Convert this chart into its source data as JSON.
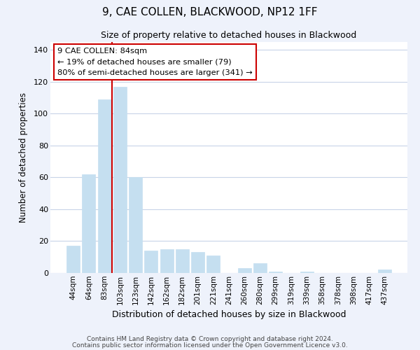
{
  "title": "9, CAE COLLEN, BLACKWOOD, NP12 1FF",
  "subtitle": "Size of property relative to detached houses in Blackwood",
  "xlabel": "Distribution of detached houses by size in Blackwood",
  "ylabel": "Number of detached properties",
  "bar_labels": [
    "44sqm",
    "64sqm",
    "83sqm",
    "103sqm",
    "123sqm",
    "142sqm",
    "162sqm",
    "182sqm",
    "201sqm",
    "221sqm",
    "241sqm",
    "260sqm",
    "280sqm",
    "299sqm",
    "319sqm",
    "339sqm",
    "358sqm",
    "378sqm",
    "398sqm",
    "417sqm",
    "437sqm"
  ],
  "bar_values": [
    17,
    62,
    109,
    117,
    60,
    14,
    15,
    15,
    13,
    11,
    0,
    3,
    6,
    1,
    0,
    1,
    0,
    0,
    0,
    0,
    2
  ],
  "bar_color": "#c5dff0",
  "vline_index": 2,
  "vline_color": "#cc0000",
  "ylim": [
    0,
    145
  ],
  "yticks": [
    0,
    20,
    40,
    60,
    80,
    100,
    120,
    140
  ],
  "annotation_title": "9 CAE COLLEN: 84sqm",
  "annotation_line1": "← 19% of detached houses are smaller (79)",
  "annotation_line2": "80% of semi-detached houses are larger (341) →",
  "annotation_box_facecolor": "#ffffff",
  "annotation_box_edgecolor": "#cc0000",
  "footer_line1": "Contains HM Land Registry data © Crown copyright and database right 2024.",
  "footer_line2": "Contains public sector information licensed under the Open Government Licence v3.0.",
  "background_color": "#eef2fb",
  "plot_bg_color": "#ffffff",
  "grid_color": "#c8d4e8"
}
